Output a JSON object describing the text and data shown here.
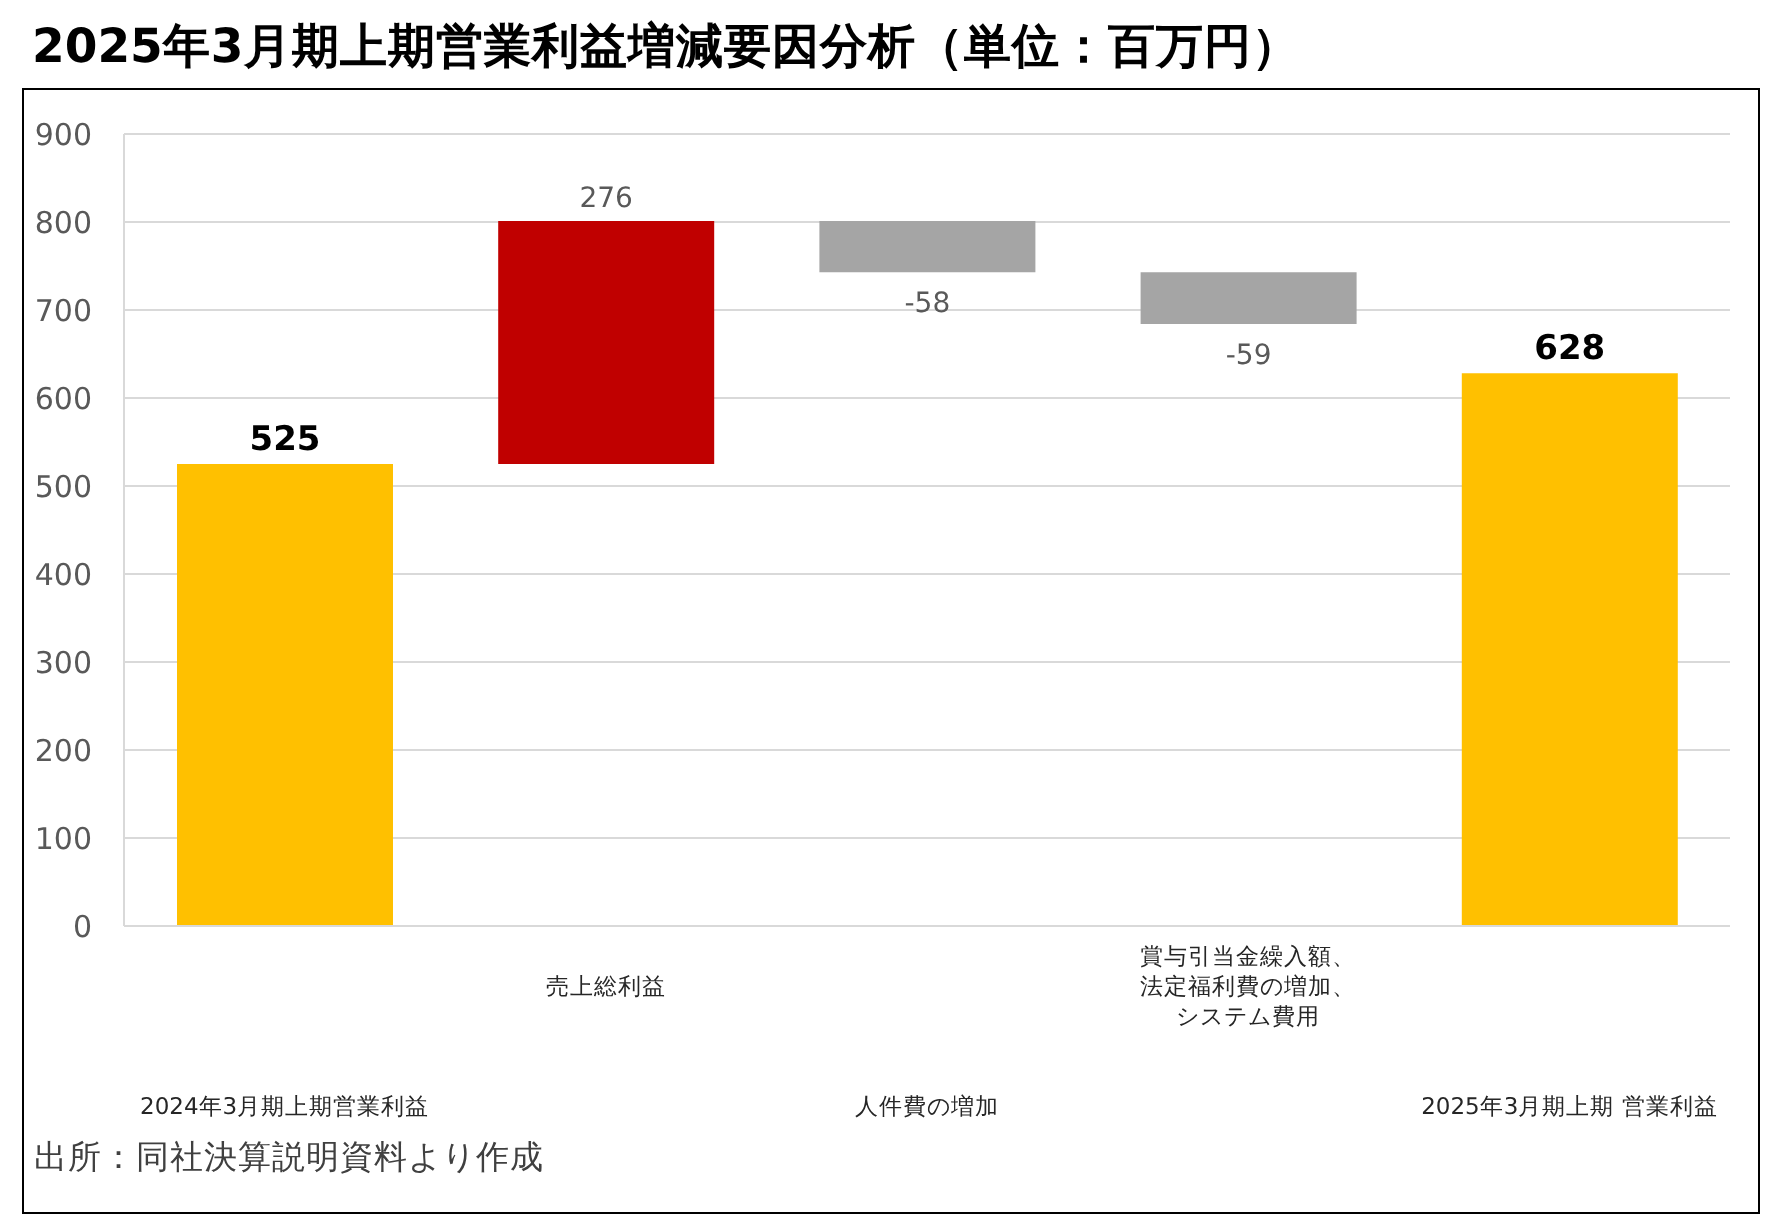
{
  "chart_data": {
    "type": "bar",
    "title": "2025年3月期上期営業利益増減要因分析（単位：百万円）",
    "categories": [
      "2024年3月期上期営業利益",
      "売上総利益",
      "人件費の増加",
      "賞与引当金繰入額、法定福利費の増加、システム費用",
      "2025年3月期上期 営業利益"
    ],
    "values": [
      525,
      276,
      -58,
      -59,
      628
    ],
    "base": [
      0,
      525,
      801,
      743,
      0
    ],
    "colors": [
      "#ffc000",
      "#c00000",
      "#a5a5a5",
      "#a5a5a5",
      "#ffc000"
    ],
    "ylim": [
      0,
      900
    ],
    "yticks": [
      0,
      100,
      200,
      300,
      400,
      500,
      600,
      700,
      800,
      900
    ],
    "grid": "y",
    "data_labels": true,
    "annotations": [
      "出所：同社決算説明資料より作成"
    ]
  }
}
